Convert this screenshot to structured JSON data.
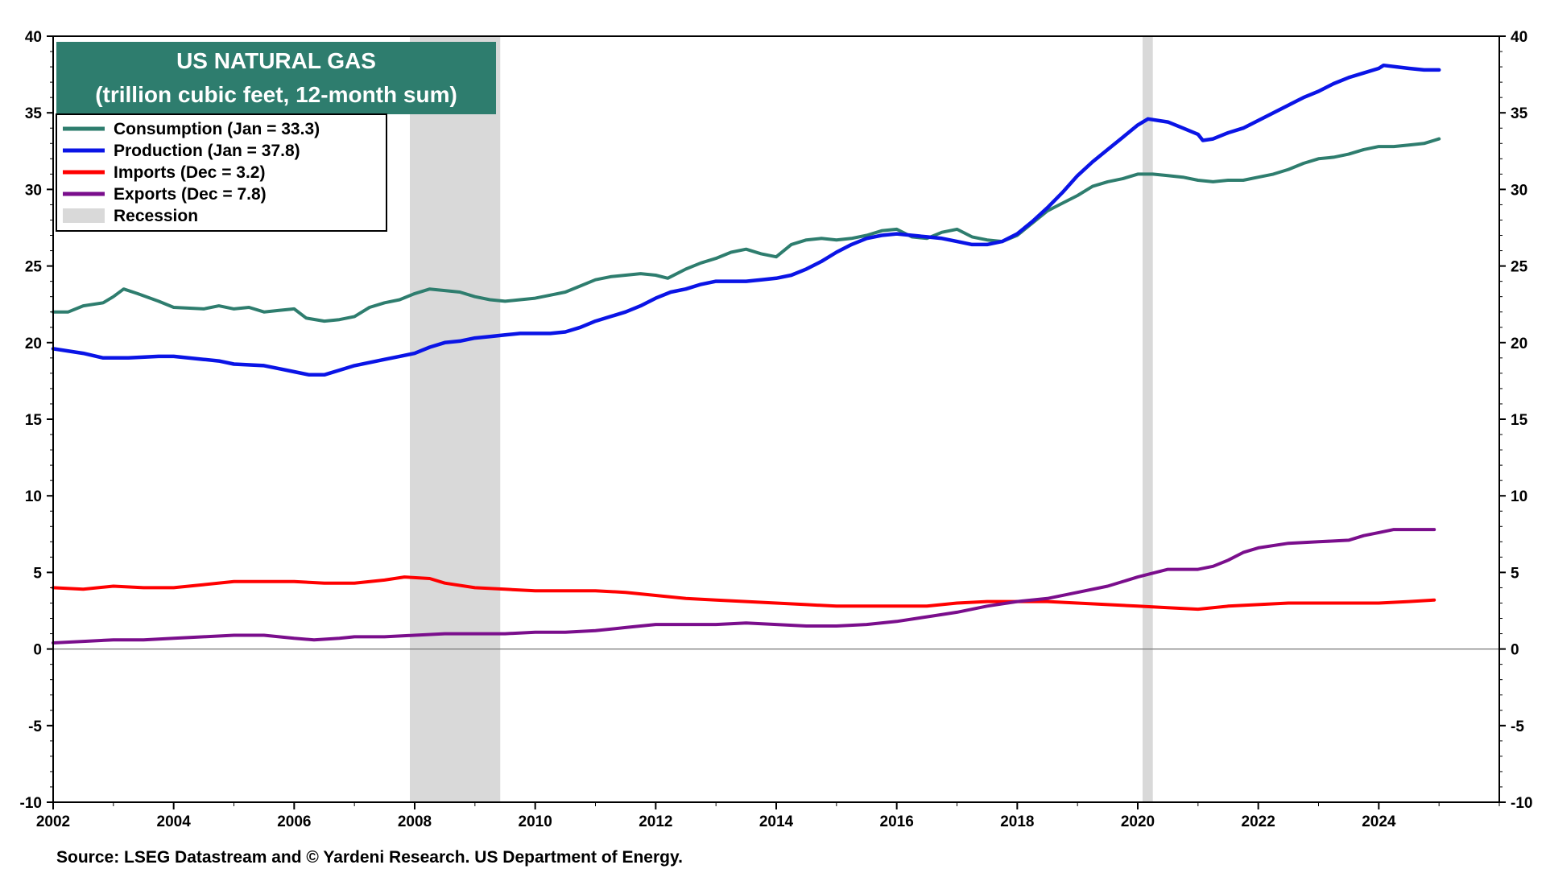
{
  "chart_data": {
    "type": "line",
    "title": "US NATURAL GAS",
    "subtitle": "(trillion cubic feet, 12-month sum)",
    "source": "Source: LSEG Datastream and © Yardeni Research. US Department of Energy.",
    "xlim": [
      2002,
      2026
    ],
    "ylim": [
      -10,
      40
    ],
    "x_ticks": [
      2002,
      2004,
      2006,
      2008,
      2010,
      2012,
      2014,
      2016,
      2018,
      2020,
      2022,
      2024
    ],
    "y_ticks": [
      -10,
      -5,
      0,
      5,
      10,
      15,
      20,
      25,
      30,
      35,
      40
    ],
    "grid": false,
    "dual_axis": true,
    "legend_position": "top-left",
    "recessions": [
      {
        "start": 2007.92,
        "end": 2009.42
      },
      {
        "start": 2020.08,
        "end": 2020.25
      }
    ],
    "recession_label": "Recession",
    "colors": {
      "title_bg": "#2e7d6e",
      "recession": "#d9d9d9",
      "zero_line": "#777777"
    },
    "series": [
      {
        "name": "Consumption (Jan = 33.3)",
        "color": "#2e7d6e",
        "points": [
          [
            2002.0,
            22.0
          ],
          [
            2002.25,
            22.0
          ],
          [
            2002.5,
            22.4
          ],
          [
            2002.83,
            22.6
          ],
          [
            2003.0,
            23.0
          ],
          [
            2003.17,
            23.5
          ],
          [
            2003.4,
            23.2
          ],
          [
            2003.75,
            22.7
          ],
          [
            2004.0,
            22.3
          ],
          [
            2004.5,
            22.2
          ],
          [
            2004.75,
            22.4
          ],
          [
            2005.0,
            22.2
          ],
          [
            2005.25,
            22.3
          ],
          [
            2005.5,
            22.0
          ],
          [
            2005.75,
            22.1
          ],
          [
            2006.0,
            22.2
          ],
          [
            2006.2,
            21.6
          ],
          [
            2006.5,
            21.4
          ],
          [
            2006.75,
            21.5
          ],
          [
            2007.0,
            21.7
          ],
          [
            2007.25,
            22.3
          ],
          [
            2007.5,
            22.6
          ],
          [
            2007.75,
            22.8
          ],
          [
            2008.0,
            23.2
          ],
          [
            2008.25,
            23.5
          ],
          [
            2008.5,
            23.4
          ],
          [
            2008.75,
            23.3
          ],
          [
            2009.0,
            23.0
          ],
          [
            2009.25,
            22.8
          ],
          [
            2009.5,
            22.7
          ],
          [
            2009.75,
            22.8
          ],
          [
            2010.0,
            22.9
          ],
          [
            2010.25,
            23.1
          ],
          [
            2010.5,
            23.3
          ],
          [
            2010.75,
            23.7
          ],
          [
            2011.0,
            24.1
          ],
          [
            2011.25,
            24.3
          ],
          [
            2011.5,
            24.4
          ],
          [
            2011.75,
            24.5
          ],
          [
            2012.0,
            24.4
          ],
          [
            2012.2,
            24.2
          ],
          [
            2012.5,
            24.8
          ],
          [
            2012.75,
            25.2
          ],
          [
            2013.0,
            25.5
          ],
          [
            2013.25,
            25.9
          ],
          [
            2013.5,
            26.1
          ],
          [
            2013.75,
            25.8
          ],
          [
            2014.0,
            25.6
          ],
          [
            2014.25,
            26.4
          ],
          [
            2014.5,
            26.7
          ],
          [
            2014.75,
            26.8
          ],
          [
            2015.0,
            26.7
          ],
          [
            2015.25,
            26.8
          ],
          [
            2015.5,
            27.0
          ],
          [
            2015.75,
            27.3
          ],
          [
            2016.0,
            27.4
          ],
          [
            2016.25,
            26.9
          ],
          [
            2016.5,
            26.8
          ],
          [
            2016.75,
            27.2
          ],
          [
            2017.0,
            27.4
          ],
          [
            2017.25,
            26.9
          ],
          [
            2017.5,
            26.7
          ],
          [
            2017.75,
            26.6
          ],
          [
            2018.0,
            27.0
          ],
          [
            2018.25,
            27.8
          ],
          [
            2018.5,
            28.6
          ],
          [
            2018.75,
            29.1
          ],
          [
            2019.0,
            29.6
          ],
          [
            2019.25,
            30.2
          ],
          [
            2019.5,
            30.5
          ],
          [
            2019.75,
            30.7
          ],
          [
            2020.0,
            31.0
          ],
          [
            2020.25,
            31.0
          ],
          [
            2020.5,
            30.9
          ],
          [
            2020.75,
            30.8
          ],
          [
            2021.0,
            30.6
          ],
          [
            2021.25,
            30.5
          ],
          [
            2021.5,
            30.6
          ],
          [
            2021.75,
            30.6
          ],
          [
            2022.0,
            30.8
          ],
          [
            2022.25,
            31.0
          ],
          [
            2022.5,
            31.3
          ],
          [
            2022.75,
            31.7
          ],
          [
            2023.0,
            32.0
          ],
          [
            2023.25,
            32.1
          ],
          [
            2023.5,
            32.3
          ],
          [
            2023.75,
            32.6
          ],
          [
            2024.0,
            32.8
          ],
          [
            2024.25,
            32.8
          ],
          [
            2024.5,
            32.9
          ],
          [
            2024.75,
            33.0
          ],
          [
            2025.0,
            33.3
          ]
        ]
      },
      {
        "name": "Production (Jan = 37.8)",
        "color": "#0a14e6",
        "points": [
          [
            2002.0,
            19.6
          ],
          [
            2002.5,
            19.3
          ],
          [
            2002.83,
            19.0
          ],
          [
            2003.25,
            19.0
          ],
          [
            2003.75,
            19.1
          ],
          [
            2004.0,
            19.1
          ],
          [
            2004.5,
            18.9
          ],
          [
            2004.75,
            18.8
          ],
          [
            2005.0,
            18.6
          ],
          [
            2005.5,
            18.5
          ],
          [
            2005.75,
            18.3
          ],
          [
            2006.0,
            18.1
          ],
          [
            2006.25,
            17.9
          ],
          [
            2006.5,
            17.9
          ],
          [
            2006.75,
            18.2
          ],
          [
            2007.0,
            18.5
          ],
          [
            2007.25,
            18.7
          ],
          [
            2007.5,
            18.9
          ],
          [
            2007.75,
            19.1
          ],
          [
            2008.0,
            19.3
          ],
          [
            2008.25,
            19.7
          ],
          [
            2008.5,
            20.0
          ],
          [
            2008.75,
            20.1
          ],
          [
            2009.0,
            20.3
          ],
          [
            2009.25,
            20.4
          ],
          [
            2009.5,
            20.5
          ],
          [
            2009.75,
            20.6
          ],
          [
            2010.0,
            20.6
          ],
          [
            2010.25,
            20.6
          ],
          [
            2010.5,
            20.7
          ],
          [
            2010.75,
            21.0
          ],
          [
            2011.0,
            21.4
          ],
          [
            2011.25,
            21.7
          ],
          [
            2011.5,
            22.0
          ],
          [
            2011.75,
            22.4
          ],
          [
            2012.0,
            22.9
          ],
          [
            2012.25,
            23.3
          ],
          [
            2012.5,
            23.5
          ],
          [
            2012.75,
            23.8
          ],
          [
            2013.0,
            24.0
          ],
          [
            2013.25,
            24.0
          ],
          [
            2013.5,
            24.0
          ],
          [
            2013.75,
            24.1
          ],
          [
            2014.0,
            24.2
          ],
          [
            2014.25,
            24.4
          ],
          [
            2014.5,
            24.8
          ],
          [
            2014.75,
            25.3
          ],
          [
            2015.0,
            25.9
          ],
          [
            2015.25,
            26.4
          ],
          [
            2015.5,
            26.8
          ],
          [
            2015.75,
            27.0
          ],
          [
            2016.0,
            27.1
          ],
          [
            2016.25,
            27.0
          ],
          [
            2016.5,
            26.9
          ],
          [
            2016.75,
            26.8
          ],
          [
            2017.0,
            26.6
          ],
          [
            2017.25,
            26.4
          ],
          [
            2017.5,
            26.4
          ],
          [
            2017.75,
            26.6
          ],
          [
            2018.0,
            27.1
          ],
          [
            2018.25,
            27.9
          ],
          [
            2018.5,
            28.8
          ],
          [
            2018.75,
            29.8
          ],
          [
            2019.0,
            30.9
          ],
          [
            2019.25,
            31.8
          ],
          [
            2019.5,
            32.6
          ],
          [
            2019.75,
            33.4
          ],
          [
            2020.0,
            34.2
          ],
          [
            2020.17,
            34.6
          ],
          [
            2020.5,
            34.4
          ],
          [
            2020.75,
            34.0
          ],
          [
            2021.0,
            33.6
          ],
          [
            2021.08,
            33.2
          ],
          [
            2021.25,
            33.3
          ],
          [
            2021.5,
            33.7
          ],
          [
            2021.75,
            34.0
          ],
          [
            2022.0,
            34.5
          ],
          [
            2022.25,
            35.0
          ],
          [
            2022.5,
            35.5
          ],
          [
            2022.75,
            36.0
          ],
          [
            2023.0,
            36.4
          ],
          [
            2023.25,
            36.9
          ],
          [
            2023.5,
            37.3
          ],
          [
            2023.75,
            37.6
          ],
          [
            2024.0,
            37.9
          ],
          [
            2024.08,
            38.1
          ],
          [
            2024.5,
            37.9
          ],
          [
            2024.75,
            37.8
          ],
          [
            2025.0,
            37.8
          ]
        ]
      },
      {
        "name": "Imports (Dec = 3.2)",
        "color": "#ff0000",
        "points": [
          [
            2002.0,
            4.0
          ],
          [
            2002.5,
            3.9
          ],
          [
            2003.0,
            4.1
          ],
          [
            2003.5,
            4.0
          ],
          [
            2004.0,
            4.0
          ],
          [
            2004.5,
            4.2
          ],
          [
            2005.0,
            4.4
          ],
          [
            2005.5,
            4.4
          ],
          [
            2006.0,
            4.4
          ],
          [
            2006.5,
            4.3
          ],
          [
            2007.0,
            4.3
          ],
          [
            2007.5,
            4.5
          ],
          [
            2007.83,
            4.7
          ],
          [
            2008.25,
            4.6
          ],
          [
            2008.5,
            4.3
          ],
          [
            2009.0,
            4.0
          ],
          [
            2009.5,
            3.9
          ],
          [
            2010.0,
            3.8
          ],
          [
            2010.5,
            3.8
          ],
          [
            2011.0,
            3.8
          ],
          [
            2011.5,
            3.7
          ],
          [
            2012.0,
            3.5
          ],
          [
            2012.5,
            3.3
          ],
          [
            2013.0,
            3.2
          ],
          [
            2013.5,
            3.1
          ],
          [
            2014.0,
            3.0
          ],
          [
            2014.5,
            2.9
          ],
          [
            2015.0,
            2.8
          ],
          [
            2015.5,
            2.8
          ],
          [
            2016.0,
            2.8
          ],
          [
            2016.5,
            2.8
          ],
          [
            2017.0,
            3.0
          ],
          [
            2017.5,
            3.1
          ],
          [
            2018.0,
            3.1
          ],
          [
            2018.5,
            3.1
          ],
          [
            2019.0,
            3.0
          ],
          [
            2019.5,
            2.9
          ],
          [
            2020.0,
            2.8
          ],
          [
            2020.5,
            2.7
          ],
          [
            2021.0,
            2.6
          ],
          [
            2021.5,
            2.8
          ],
          [
            2022.0,
            2.9
          ],
          [
            2022.5,
            3.0
          ],
          [
            2023.0,
            3.0
          ],
          [
            2023.5,
            3.0
          ],
          [
            2024.0,
            3.0
          ],
          [
            2024.5,
            3.1
          ],
          [
            2024.92,
            3.2
          ]
        ]
      },
      {
        "name": "Exports (Dec = 7.8)",
        "color": "#7a0e8c",
        "points": [
          [
            2002.0,
            0.4
          ],
          [
            2002.5,
            0.5
          ],
          [
            2003.0,
            0.6
          ],
          [
            2003.5,
            0.6
          ],
          [
            2004.0,
            0.7
          ],
          [
            2004.5,
            0.8
          ],
          [
            2005.0,
            0.9
          ],
          [
            2005.5,
            0.9
          ],
          [
            2006.0,
            0.7
          ],
          [
            2006.33,
            0.6
          ],
          [
            2006.75,
            0.7
          ],
          [
            2007.0,
            0.8
          ],
          [
            2007.5,
            0.8
          ],
          [
            2008.0,
            0.9
          ],
          [
            2008.5,
            1.0
          ],
          [
            2009.0,
            1.0
          ],
          [
            2009.5,
            1.0
          ],
          [
            2010.0,
            1.1
          ],
          [
            2010.5,
            1.1
          ],
          [
            2011.0,
            1.2
          ],
          [
            2011.5,
            1.4
          ],
          [
            2012.0,
            1.6
          ],
          [
            2012.5,
            1.6
          ],
          [
            2013.0,
            1.6
          ],
          [
            2013.5,
            1.7
          ],
          [
            2014.0,
            1.6
          ],
          [
            2014.5,
            1.5
          ],
          [
            2015.0,
            1.5
          ],
          [
            2015.5,
            1.6
          ],
          [
            2016.0,
            1.8
          ],
          [
            2016.5,
            2.1
          ],
          [
            2017.0,
            2.4
          ],
          [
            2017.5,
            2.8
          ],
          [
            2018.0,
            3.1
          ],
          [
            2018.5,
            3.3
          ],
          [
            2019.0,
            3.7
          ],
          [
            2019.5,
            4.1
          ],
          [
            2020.0,
            4.7
          ],
          [
            2020.5,
            5.2
          ],
          [
            2021.0,
            5.2
          ],
          [
            2021.25,
            5.4
          ],
          [
            2021.5,
            5.8
          ],
          [
            2021.75,
            6.3
          ],
          [
            2022.0,
            6.6
          ],
          [
            2022.5,
            6.9
          ],
          [
            2023.0,
            7.0
          ],
          [
            2023.5,
            7.1
          ],
          [
            2023.75,
            7.4
          ],
          [
            2024.0,
            7.6
          ],
          [
            2024.25,
            7.8
          ],
          [
            2024.92,
            7.8
          ]
        ]
      }
    ]
  }
}
